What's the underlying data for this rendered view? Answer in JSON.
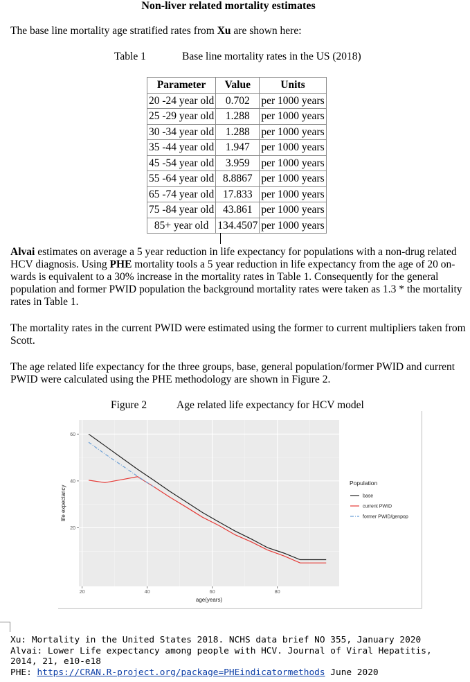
{
  "document": {
    "title": "Non-liver related mortality estimates",
    "intro": {
      "before": "The base line mortality age stratified rates from ",
      "bold": "Xu",
      "after": " are shown here:"
    },
    "table_caption": {
      "label": "Table 1",
      "text": "Base line mortality rates in the US (2018)"
    },
    "table": {
      "headers": [
        "Parameter",
        "Value",
        "Units"
      ],
      "rows": [
        [
          "20 -24 year old",
          "0.702",
          "per 1000 years"
        ],
        [
          "25 -29 year old",
          "1.288",
          "per 1000 years"
        ],
        [
          "30 -34 year old",
          "1.288",
          "per 1000 years"
        ],
        [
          "35 -44 year old",
          "1.947",
          "per 1000 years"
        ],
        [
          "45 -54 year old",
          "3.959",
          "per 1000 years"
        ],
        [
          "55 -64 year old",
          "8.8867",
          "per 1000 years"
        ],
        [
          "65 -74 year old",
          "17.833",
          "per 1000 years"
        ],
        [
          "75 -84 year old",
          "43.861",
          "per 1000 years"
        ],
        [
          "85+ year old",
          "134.4507",
          "per 1000 years"
        ]
      ]
    },
    "para2": {
      "alvai": "Alvai",
      "part1": " estimates on average a 5 year reduction in life expectancy for populations with a non-drug related HCV diagnosis. Using ",
      "phe": "PHE",
      "part2": " mortality tools a 5 year reduction in life expectancy from the age of 20 on-wards is equivalent to a 30% increase in the mortality rates in Table 1. Consequently for the general population and former PWID population the background mortality rates were taken as 1.3 * the mortality rates in Table 1."
    },
    "para3": "The mortality rates in the current PWID were estimated using the former to current multipliers taken from Scott.",
    "para4": "The age related life expectancy for the three groups, base, general population/former PWID and current PWID were calculated using the PHE methodology are shown in Figure 2.",
    "figure_caption": {
      "label": "Figure 2",
      "text": "Age related life expectancy for HCV model"
    },
    "refs": [
      {
        "text": "Xu: Mortality in the United States 2018. NCHS data brief NO 355, January 2020"
      },
      {
        "text": "Alvai: Lower Life expectancy among people with HCV. Journal of Viral Hepatitis,"
      },
      {
        "text": "2014, 21, e10-e18"
      },
      {
        "prefix": "PHE: ",
        "link": "https://CRAN.R-project.org/package=PHEindicatormethods",
        "suffix": " June 2020"
      }
    ]
  },
  "chart_data": {
    "type": "line",
    "xlabel": "age(years)",
    "ylabel": "life expectancy",
    "xlim": [
      19,
      99
    ],
    "ylim": [
      -5,
      66
    ],
    "xticks": [
      20,
      40,
      60,
      80
    ],
    "yticks": [
      20,
      40,
      60
    ],
    "grid": true,
    "legend_title": "Population",
    "legend_position": "right",
    "series": [
      {
        "name": "base",
        "color": "#222222",
        "dash": "solid",
        "x": [
          22,
          27,
          32,
          37,
          42,
          47,
          52,
          57,
          62,
          67,
          72,
          77,
          82,
          87,
          95
        ],
        "y": [
          60,
          55,
          50,
          45,
          40.3,
          35.5,
          31,
          26.5,
          22.5,
          18.6,
          15.2,
          11.5,
          9.2,
          6.4,
          6.4
        ]
      },
      {
        "name": "current PWID",
        "color": "#e53935",
        "dash": "solid",
        "x": [
          22,
          27,
          32,
          37,
          42,
          47,
          52,
          57,
          62,
          67,
          72,
          77,
          82,
          87,
          95
        ],
        "y": [
          40.3,
          39.3,
          40.5,
          41.8,
          37.5,
          33,
          28.8,
          24.5,
          21,
          17,
          14,
          10.5,
          8,
          5,
          5
        ]
      },
      {
        "name": "former PWID/genpop",
        "color": "#6a9fd6",
        "dash": "dashdot",
        "x": [
          22,
          27,
          32,
          37,
          42
        ],
        "y": [
          56.5,
          51.5,
          46.8,
          42,
          37.5
        ]
      }
    ]
  }
}
